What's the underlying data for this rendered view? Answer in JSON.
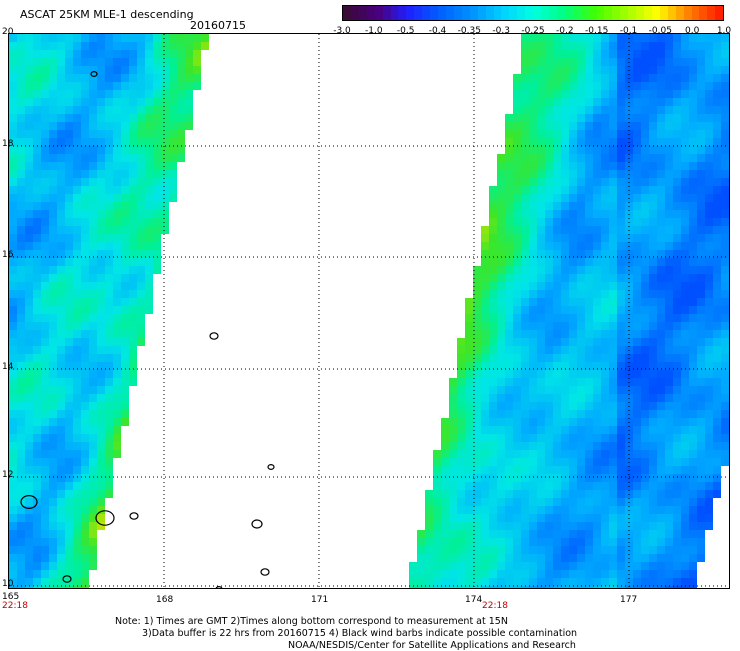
{
  "header": {
    "title": "ASCAT 25KM MLE-1 descending",
    "date": "20160715"
  },
  "colorbar": {
    "labels": [
      "-3.0",
      "-1.0",
      "-0.5",
      "-0.4",
      "-0.35",
      "-0.3",
      "-0.25",
      "-0.2",
      "-0.15",
      "-0.1",
      "-0.05",
      "0.0",
      "1.0"
    ],
    "colors": [
      "#3a0a3a",
      "#4a0080",
      "#2020ff",
      "#0060ff",
      "#0090ff",
      "#00d0ff",
      "#00ffe0",
      "#00ff80",
      "#40ff00",
      "#a0ff00",
      "#ffff00",
      "#ff8000",
      "#ff2000"
    ]
  },
  "map": {
    "lon_ticks": [
      "165",
      "168",
      "171",
      "174",
      "177"
    ],
    "lat_ticks": [
      "20",
      "18",
      "16",
      "14",
      "12",
      "10"
    ],
    "times": [
      "22:18",
      "22:18"
    ]
  },
  "notes": {
    "line1": "Note: 1) Times are GMT 2)Times along bottom correspond to measurement at 15N",
    "line2": "3)Data buffer is 22 hrs from 20160715 4) Black wind barbs indicate possible contamination",
    "line3": "NOAA/NESDIS/Center for Satellite Applications and Research"
  }
}
